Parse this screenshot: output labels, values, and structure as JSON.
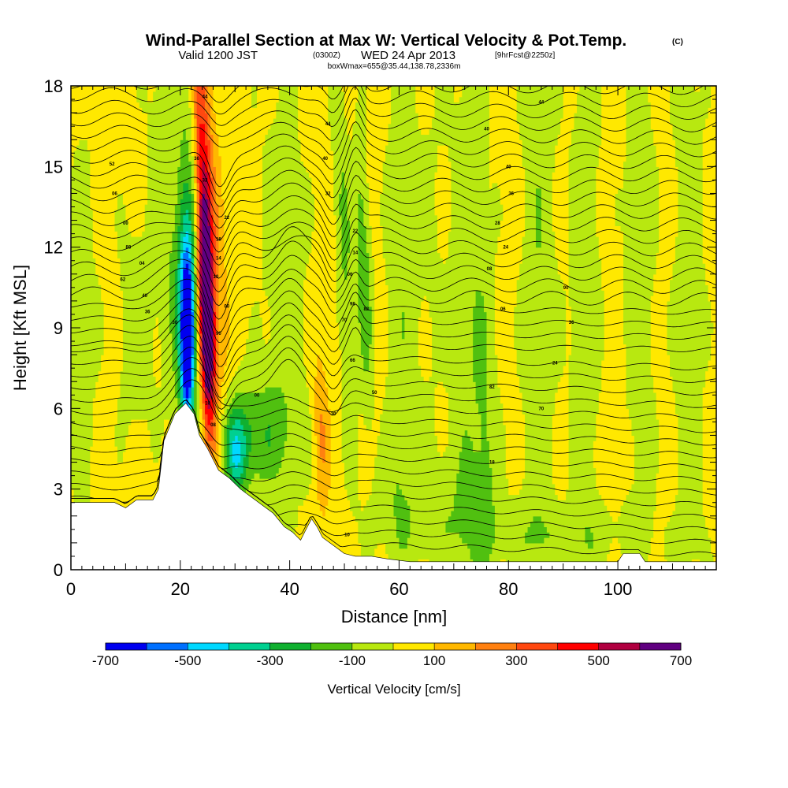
{
  "title": {
    "main": "Wind-Parallel Section at Max W: Vertical Velocity & Pot.Temp.",
    "copyright": "(C)",
    "sub_valid": "Valid 1200 JST",
    "sub_utc": "(0300Z)",
    "sub_date": "WED 24 Apr 2013",
    "sub_fcst": "[9hrFcst@2250z]",
    "box": "boxWmax=655@35.44,138.78,2336m"
  },
  "chart_data": {
    "type": "heatmap",
    "xlabel": "Distance [nm]",
    "ylabel": "Height [Kft MSL]",
    "xlim": [
      0,
      118
    ],
    "ylim": [
      0,
      18
    ],
    "x_ticks": [
      "0",
      "20",
      "40",
      "60",
      "80",
      "100"
    ],
    "x_tick_values": [
      0,
      20,
      40,
      60,
      80,
      100
    ],
    "y_ticks": [
      "0",
      "3",
      "6",
      "9",
      "12",
      "15",
      "18"
    ],
    "y_tick_values": [
      0,
      3,
      6,
      9,
      12,
      15,
      18
    ],
    "colorbar": {
      "title": "Vertical Velocity [cm/s]",
      "labels": [
        "-700",
        "-500",
        "-300",
        "-100",
        "100",
        "300",
        "500",
        "700"
      ],
      "bins": [
        {
          "from": -700,
          "to": -600,
          "color": "#0000f0"
        },
        {
          "from": -600,
          "to": -500,
          "color": "#0070ff"
        },
        {
          "from": -500,
          "to": -400,
          "color": "#00d8ff"
        },
        {
          "from": -400,
          "to": -300,
          "color": "#00d090"
        },
        {
          "from": -300,
          "to": -200,
          "color": "#10b030"
        },
        {
          "from": -200,
          "to": -100,
          "color": "#50c010"
        },
        {
          "from": -100,
          "to": 0,
          "color": "#b8e810"
        },
        {
          "from": 0,
          "to": 100,
          "color": "#ffe800"
        },
        {
          "from": 100,
          "to": 200,
          "color": "#ffb800"
        },
        {
          "from": 200,
          "to": 300,
          "color": "#ff8010"
        },
        {
          "from": 300,
          "to": 400,
          "color": "#ff4810"
        },
        {
          "from": 400,
          "to": 500,
          "color": "#ff0000"
        },
        {
          "from": 500,
          "to": 600,
          "color": "#b00040"
        },
        {
          "from": 600,
          "to": 700,
          "color": "#600080"
        }
      ]
    },
    "terrain_kft": [
      [
        0,
        2.5
      ],
      [
        4,
        2.5
      ],
      [
        8,
        2.5
      ],
      [
        10,
        2.3
      ],
      [
        12,
        2.6
      ],
      [
        15,
        2.6
      ],
      [
        16,
        3.0
      ],
      [
        17,
        4.8
      ],
      [
        19,
        5.8
      ],
      [
        21,
        6.2
      ],
      [
        22.5,
        5.8
      ],
      [
        23.5,
        5.0
      ],
      [
        25,
        4.5
      ],
      [
        27,
        3.7
      ],
      [
        29,
        3.4
      ],
      [
        31,
        3.0
      ],
      [
        33,
        2.7
      ],
      [
        35,
        2.4
      ],
      [
        37,
        2.1
      ],
      [
        39,
        1.6
      ],
      [
        40.5,
        1.4
      ],
      [
        42,
        1.1
      ],
      [
        43,
        1.5
      ],
      [
        44,
        1.9
      ],
      [
        45,
        1.6
      ],
      [
        46,
        1.2
      ],
      [
        48,
        0.9
      ],
      [
        50,
        0.6
      ],
      [
        52,
        0.5
      ],
      [
        55,
        0.5
      ],
      [
        58,
        0.4
      ],
      [
        60,
        0.35
      ],
      [
        62,
        0.3
      ],
      [
        70,
        0.3
      ],
      [
        80,
        0.3
      ],
      [
        100,
        0.3
      ],
      [
        101,
        0.6
      ],
      [
        104,
        0.6
      ],
      [
        105,
        0.3
      ],
      [
        110,
        0.3
      ],
      [
        118,
        0.3
      ]
    ],
    "w_features": [
      {
        "x": 21.3,
        "z": 8.5,
        "sx": 0.9,
        "sz": 2.2,
        "tilt": 0.0,
        "w": -680
      },
      {
        "x": 21.0,
        "z": 10.5,
        "sx": 1.2,
        "sz": 3.0,
        "tilt": -0.05,
        "w": -300
      },
      {
        "x": 23.0,
        "z": 14.0,
        "sx": 1.8,
        "sz": 5.0,
        "tilt": -0.25,
        "w": -160
      },
      {
        "x": 24.8,
        "z": 9.0,
        "sx": 0.9,
        "sz": 3.0,
        "tilt": -0.12,
        "w": 620
      },
      {
        "x": 24.2,
        "z": 13.5,
        "sx": 1.1,
        "sz": 4.5,
        "tilt": -0.15,
        "w": 420
      },
      {
        "x": 26.0,
        "z": 11.0,
        "sx": 1.6,
        "sz": 6.5,
        "tilt": -0.2,
        "w": 180
      },
      {
        "x": 33.0,
        "z": 5.0,
        "sx": 5.0,
        "sz": 1.5,
        "tilt": 0.0,
        "w": -230
      },
      {
        "x": 30.0,
        "z": 4.2,
        "sx": 1.5,
        "sz": 1.2,
        "tilt": 0.0,
        "w": -300
      },
      {
        "x": 18.0,
        "z": 12.0,
        "sx": 2.0,
        "sz": 6.0,
        "tilt": -0.3,
        "w": -120
      },
      {
        "x": 45.8,
        "z": 5.0,
        "sx": 1.0,
        "sz": 2.2,
        "tilt": -0.1,
        "w": 180
      },
      {
        "x": 50.0,
        "z": 12.0,
        "sx": 1.1,
        "sz": 5.0,
        "tilt": -0.18,
        "w": -150
      },
      {
        "x": 53.5,
        "z": 11.0,
        "sx": 1.0,
        "sz": 3.5,
        "tilt": -0.15,
        "w": -220
      },
      {
        "x": 60.0,
        "z": 10.0,
        "sx": 1.8,
        "sz": 9.0,
        "tilt": 0.0,
        "w": -110
      },
      {
        "x": 65.0,
        "z": 12.0,
        "sx": 2.5,
        "sz": 6.0,
        "tilt": 0.0,
        "w": -60
      },
      {
        "x": 73.0,
        "z": 10.0,
        "sx": 2.5,
        "sz": 9.0,
        "tilt": 0.0,
        "w": -120
      },
      {
        "x": 76.0,
        "z": 5.0,
        "sx": 1.5,
        "sz": 4.0,
        "tilt": 0.0,
        "w": -100
      },
      {
        "x": 85.5,
        "z": 10.0,
        "sx": 2.2,
        "sz": 9.0,
        "tilt": 0.0,
        "w": -130
      },
      {
        "x": 94.0,
        "z": 10.0,
        "sx": 2.0,
        "sz": 9.0,
        "tilt": 0.0,
        "w": -120
      },
      {
        "x": 104.0,
        "z": 12.0,
        "sx": 2.0,
        "sz": 9.0,
        "tilt": 0.0,
        "w": -110
      },
      {
        "x": 113.0,
        "z": 10.0,
        "sx": 2.0,
        "sz": 9.0,
        "tilt": 0.0,
        "w": -110
      },
      {
        "x": 39.0,
        "z": 11.0,
        "sx": 3.0,
        "sz": 6.0,
        "tilt": -0.1,
        "w": -100
      },
      {
        "x": 12.0,
        "z": 9.0,
        "sx": 2.5,
        "sz": 3.0,
        "tilt": 0.0,
        "w": -110
      },
      {
        "x": 2.0,
        "z": 9.0,
        "sx": 2.0,
        "sz": 6.0,
        "tilt": 0.0,
        "w": -90
      },
      {
        "x": 86.0,
        "z": 1.2,
        "sx": 15.0,
        "sz": 0.9,
        "tilt": 0.0,
        "w": -80
      },
      {
        "x": 66.0,
        "z": 2.5,
        "sx": 8.0,
        "sz": 1.5,
        "tilt": 0.0,
        "w": -90
      }
    ],
    "isentrope_count": 38,
    "contour_labels": [
      {
        "x": 7.5,
        "z": 15.1,
        "text": "52"
      },
      {
        "x": 8.0,
        "z": 14.0,
        "text": "06"
      },
      {
        "x": 10.0,
        "z": 12.9,
        "text": "00"
      },
      {
        "x": 10.5,
        "z": 12.0,
        "text": "88"
      },
      {
        "x": 13.0,
        "z": 11.4,
        "text": "04"
      },
      {
        "x": 9.5,
        "z": 10.8,
        "text": "62"
      },
      {
        "x": 13.5,
        "z": 10.2,
        "text": "40"
      },
      {
        "x": 14.0,
        "z": 9.6,
        "text": "36"
      },
      {
        "x": 19.0,
        "z": 9.2,
        "text": "30"
      },
      {
        "x": 24.5,
        "z": 17.6,
        "text": "44"
      },
      {
        "x": 23.0,
        "z": 15.3,
        "text": "36"
      },
      {
        "x": 24.5,
        "z": 14.5,
        "text": "32"
      },
      {
        "x": 28.5,
        "z": 13.1,
        "text": "22"
      },
      {
        "x": 27.0,
        "z": 12.3,
        "text": "18"
      },
      {
        "x": 27.0,
        "z": 11.6,
        "text": "14"
      },
      {
        "x": 26.5,
        "z": 10.9,
        "text": "10"
      },
      {
        "x": 28.5,
        "z": 9.8,
        "text": "00"
      },
      {
        "x": 27.0,
        "z": 8.8,
        "text": "90"
      },
      {
        "x": 25.0,
        "z": 6.2,
        "text": "10"
      },
      {
        "x": 26.0,
        "z": 5.4,
        "text": "08"
      },
      {
        "x": 34.0,
        "z": 6.5,
        "text": "00"
      },
      {
        "x": 47.0,
        "z": 16.6,
        "text": "44"
      },
      {
        "x": 46.5,
        "z": 15.3,
        "text": "40"
      },
      {
        "x": 47.0,
        "z": 14.0,
        "text": "32"
      },
      {
        "x": 52.0,
        "z": 12.6,
        "text": "22"
      },
      {
        "x": 52.0,
        "z": 11.8,
        "text": "14"
      },
      {
        "x": 51.0,
        "z": 11.0,
        "text": "06"
      },
      {
        "x": 51.5,
        "z": 9.9,
        "text": "98"
      },
      {
        "x": 54.0,
        "z": 9.7,
        "text": "82"
      },
      {
        "x": 50.0,
        "z": 9.3,
        "text": "70"
      },
      {
        "x": 51.5,
        "z": 7.8,
        "text": "66"
      },
      {
        "x": 55.5,
        "z": 6.6,
        "text": "50"
      },
      {
        "x": 48.0,
        "z": 5.8,
        "text": "30"
      },
      {
        "x": 50.5,
        "z": 1.3,
        "text": "10"
      },
      {
        "x": 86.0,
        "z": 17.4,
        "text": "44"
      },
      {
        "x": 76.0,
        "z": 16.4,
        "text": "40"
      },
      {
        "x": 80.0,
        "z": 15.0,
        "text": "40"
      },
      {
        "x": 80.5,
        "z": 14.0,
        "text": "36"
      },
      {
        "x": 78.0,
        "z": 12.9,
        "text": "28"
      },
      {
        "x": 79.5,
        "z": 12.0,
        "text": "24"
      },
      {
        "x": 76.5,
        "z": 11.2,
        "text": "08"
      },
      {
        "x": 90.5,
        "z": 10.5,
        "text": "90"
      },
      {
        "x": 79.0,
        "z": 9.7,
        "text": "06"
      },
      {
        "x": 91.5,
        "z": 9.2,
        "text": "36"
      },
      {
        "x": 88.5,
        "z": 7.7,
        "text": "24"
      },
      {
        "x": 77.0,
        "z": 6.8,
        "text": "82"
      },
      {
        "x": 86.0,
        "z": 6.0,
        "text": "70"
      },
      {
        "x": 77.0,
        "z": 4.0,
        "text": "18"
      }
    ]
  }
}
